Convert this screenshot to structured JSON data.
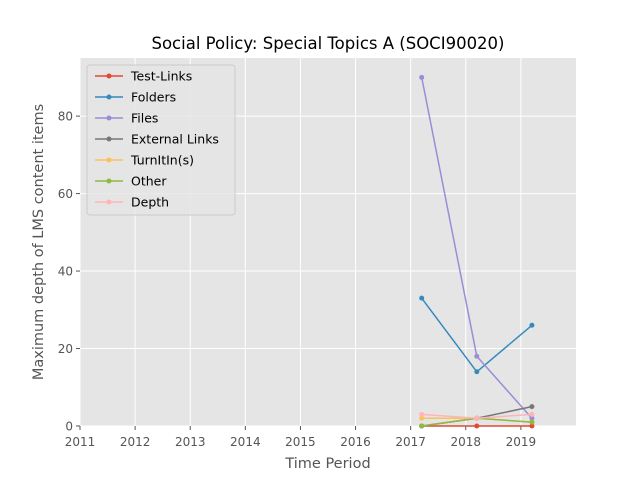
{
  "chart_data": {
    "type": "line",
    "title": "Social Policy: Special Topics A (SOCI90020)",
    "xlabel": "Time Period",
    "ylabel": "Maximum depth of LMS content items",
    "xlim": [
      2011,
      2020
    ],
    "ylim": [
      0,
      95
    ],
    "x_ticks": [
      "2011",
      "2012",
      "2013",
      "2014",
      "2015",
      "2016",
      "2017",
      "2018",
      "2019"
    ],
    "y_ticks": [
      "0",
      "20",
      "40",
      "60",
      "80"
    ],
    "grid": true,
    "legend_position": "upper-left",
    "series": [
      {
        "name": "Test-Links",
        "color": "#e24a33",
        "x": [
          2017.2,
          2018.2,
          2019.2
        ],
        "y": [
          0,
          0,
          0
        ]
      },
      {
        "name": "Folders",
        "color": "#348abd",
        "x": [
          2017.2,
          2018.2,
          2019.2
        ],
        "y": [
          33,
          14,
          26
        ]
      },
      {
        "name": "Files",
        "color": "#988ed5",
        "x": [
          2017.2,
          2018.2,
          2019.2
        ],
        "y": [
          90,
          18,
          2
        ]
      },
      {
        "name": "External Links",
        "color": "#777777",
        "x": [
          2017.2,
          2018.2,
          2019.2
        ],
        "y": [
          0,
          2,
          5
        ]
      },
      {
        "name": "TurnItIn(s)",
        "color": "#fbc15e",
        "x": [
          2017.2,
          2018.2,
          2019.2
        ],
        "y": [
          2,
          2,
          1
        ]
      },
      {
        "name": "Other",
        "color": "#8eba42",
        "x": [
          2017.2,
          2018.2,
          2019.2
        ],
        "y": [
          0,
          2,
          1
        ]
      },
      {
        "name": "Depth",
        "color": "#ffb5b8",
        "x": [
          2017.2,
          2018.2,
          2019.2
        ],
        "y": [
          3,
          2,
          3
        ]
      }
    ]
  }
}
